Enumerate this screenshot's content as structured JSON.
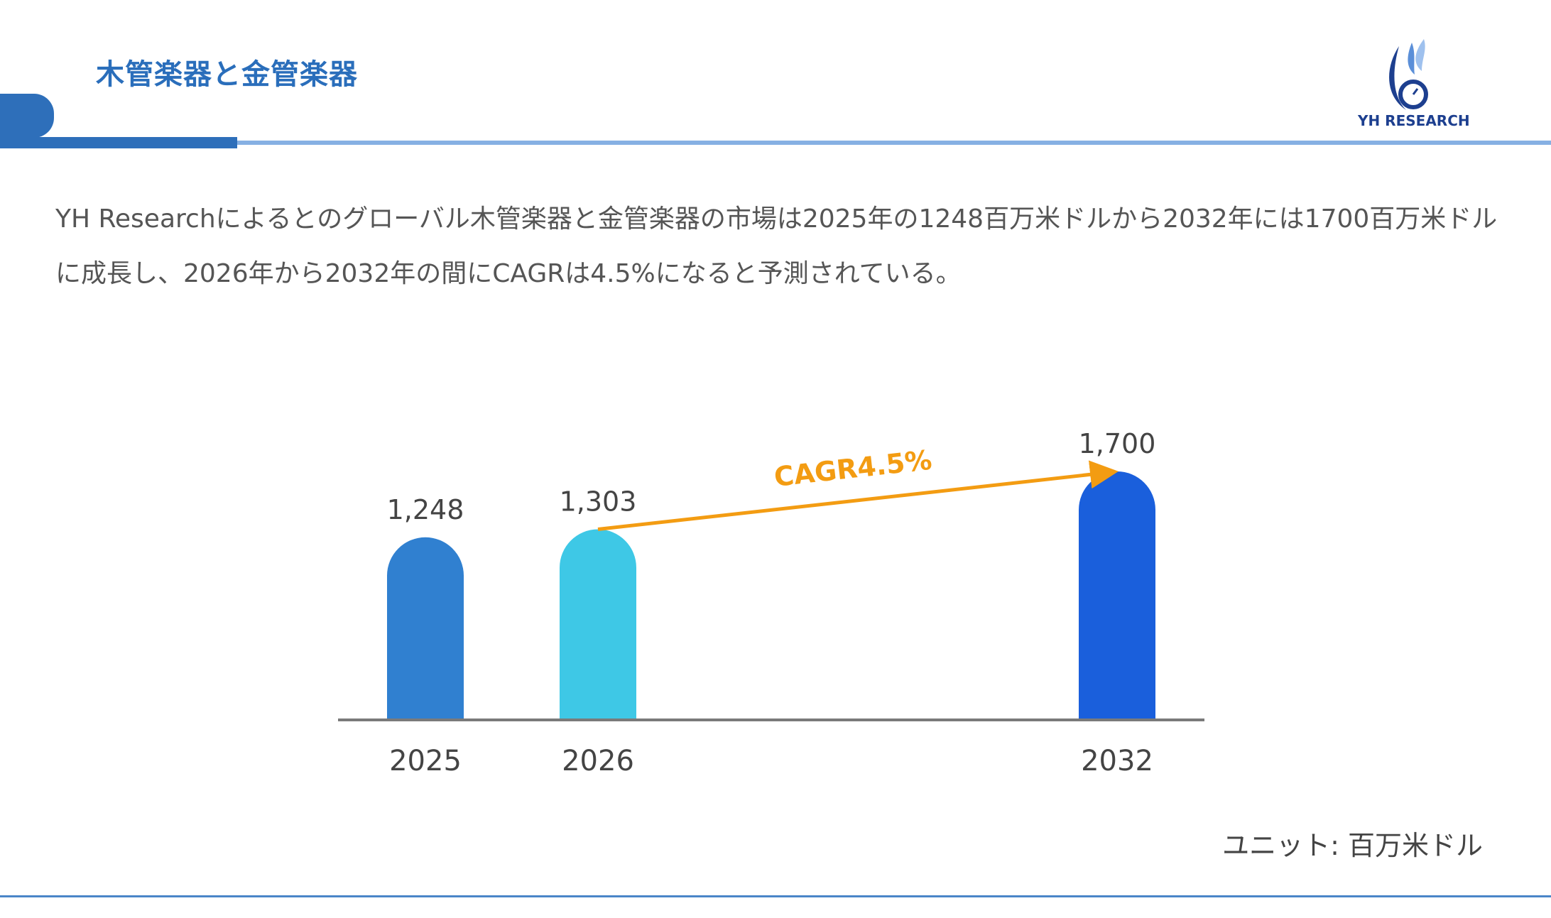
{
  "header": {
    "title": "木管楽器と金管楽器",
    "logo_text": "YH RESEARCH"
  },
  "summary": "YH Researchによるとのグローバル木管楽器と金管楽器の市場は2025年の1248百万米ドルから2032年には1700百万米ドルに成長し、2026年から2032年の間にCAGRは4.5%になると予測されている。",
  "chart_data": {
    "type": "bar",
    "categories": [
      "2025",
      "2026",
      "2032"
    ],
    "values": [
      1248,
      1303,
      1700
    ],
    "data_labels": [
      "1,248",
      "1,303",
      "1,700"
    ],
    "colors": [
      "#3080d0",
      "#3ec8e6",
      "#1a5fdc"
    ],
    "annotation": {
      "text": "CAGR4.5%",
      "from": "2026",
      "to": "2032",
      "color": "#f39c12"
    },
    "ylim": [
      0,
      1700
    ],
    "grid": false,
    "unit_label": "ユニット: 百万米ドル"
  }
}
